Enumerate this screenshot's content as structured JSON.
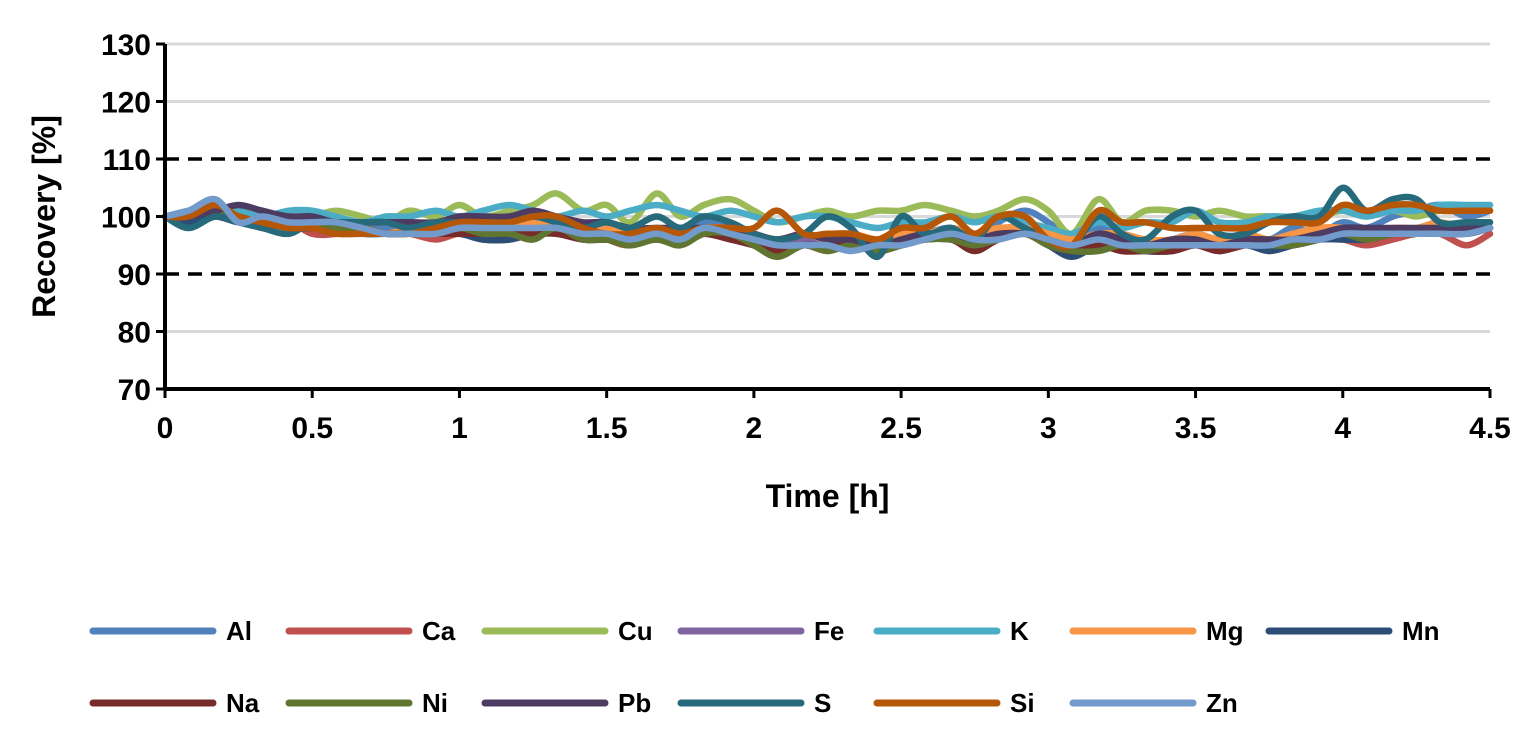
{
  "chart_data": {
    "type": "line",
    "title": "",
    "xlabel": "Time [h]",
    "ylabel": "Recovery [%]",
    "xlim": [
      0,
      4.5
    ],
    "ylim": [
      70,
      130
    ],
    "xticks": [
      0,
      0.5,
      1,
      1.5,
      2,
      2.5,
      3,
      3.5,
      4,
      4.5
    ],
    "xtick_labels": [
      "0",
      "0.5",
      "1",
      "1.5",
      "2",
      "2.5",
      "3",
      "3.5",
      "4",
      "4.5"
    ],
    "yticks": [
      70,
      80,
      90,
      100,
      110,
      120,
      130
    ],
    "ytick_labels": [
      "70",
      "80",
      "90",
      "100",
      "110",
      "120",
      "130"
    ],
    "grid": true,
    "reference_lines": [
      90,
      110
    ],
    "legend_position": "bottom",
    "x": [
      0,
      0.08,
      0.17,
      0.25,
      0.33,
      0.42,
      0.5,
      0.58,
      0.67,
      0.75,
      0.83,
      0.92,
      1,
      1.08,
      1.17,
      1.25,
      1.33,
      1.42,
      1.5,
      1.58,
      1.67,
      1.75,
      1.83,
      1.92,
      2,
      2.08,
      2.17,
      2.25,
      2.33,
      2.42,
      2.5,
      2.58,
      2.67,
      2.75,
      2.83,
      2.92,
      3,
      3.08,
      3.17,
      3.25,
      3.33,
      3.42,
      3.5,
      3.58,
      3.67,
      3.75,
      3.83,
      3.92,
      4,
      4.08,
      4.17,
      4.25,
      4.33,
      4.42,
      4.5
    ],
    "series": [
      {
        "name": "Al",
        "color": "#4F81BD",
        "values": [
          100,
          101,
          102,
          100,
          99,
          100,
          99,
          98,
          99,
          98,
          97,
          98,
          99,
          98,
          99,
          100,
          99,
          98,
          99,
          97,
          98,
          97,
          99,
          98,
          96,
          95,
          96,
          95,
          96,
          95,
          96,
          97,
          98,
          96,
          99,
          101,
          99,
          96,
          98,
          97,
          95,
          96,
          97,
          96,
          97,
          96,
          98,
          97,
          99,
          98,
          100,
          101,
          102,
          100,
          101
        ]
      },
      {
        "name": "Ca",
        "color": "#C0504D",
        "values": [
          100,
          99,
          101,
          100,
          98,
          99,
          97,
          97,
          98,
          97,
          97,
          96,
          97,
          96,
          96,
          97,
          98,
          97,
          96,
          95,
          97,
          96,
          97,
          97,
          95,
          94,
          95,
          94,
          95,
          94,
          95,
          96,
          97,
          95,
          96,
          97,
          96,
          94,
          95,
          94,
          94,
          94,
          95,
          94,
          95,
          94,
          95,
          96,
          96,
          95,
          96,
          97,
          97,
          95,
          97
        ]
      },
      {
        "name": "Cu",
        "color": "#9BBB59",
        "values": [
          100,
          100,
          101,
          100,
          99,
          100,
          100,
          101,
          100,
          99,
          101,
          100,
          102,
          100,
          101,
          102,
          104,
          101,
          102,
          99,
          104,
          100,
          102,
          103,
          101,
          99,
          100,
          101,
          100,
          101,
          101,
          102,
          101,
          100,
          101,
          103,
          101,
          97,
          103,
          99,
          101,
          101,
          100,
          101,
          100,
          100,
          99,
          100,
          101,
          100,
          101,
          100,
          101,
          101,
          102
        ]
      },
      {
        "name": "Fe",
        "color": "#8064A2",
        "values": [
          100,
          100,
          101,
          100,
          99,
          99,
          98,
          98,
          98,
          97,
          98,
          97,
          98,
          97,
          97,
          98,
          98,
          97,
          97,
          96,
          97,
          97,
          97,
          97,
          96,
          95,
          96,
          95,
          96,
          95,
          96,
          97,
          97,
          96,
          97,
          98,
          96,
          95,
          96,
          96,
          95,
          95,
          96,
          95,
          96,
          95,
          96,
          97,
          97,
          96,
          97,
          97,
          98,
          97,
          98
        ]
      },
      {
        "name": "K",
        "color": "#4BACC6",
        "values": [
          100,
          100,
          101,
          101,
          100,
          101,
          101,
          100,
          99,
          100,
          100,
          101,
          100,
          101,
          102,
          101,
          100,
          101,
          100,
          101,
          102,
          101,
          100,
          101,
          100,
          99,
          100,
          100,
          99,
          98,
          99,
          99,
          100,
          99,
          100,
          99,
          98,
          97,
          99,
          98,
          99,
          99,
          101,
          99,
          99,
          100,
          100,
          101,
          101,
          100,
          101,
          101,
          102,
          102,
          102
        ]
      },
      {
        "name": "Mg",
        "color": "#F79646",
        "values": [
          100,
          100,
          101,
          100,
          99,
          99,
          98,
          98,
          98,
          97,
          98,
          98,
          98,
          98,
          98,
          99,
          98,
          98,
          98,
          97,
          98,
          97,
          98,
          98,
          97,
          96,
          97,
          96,
          97,
          96,
          97,
          97,
          98,
          97,
          98,
          98,
          97,
          96,
          97,
          97,
          96,
          96,
          97,
          96,
          97,
          96,
          97,
          98,
          98,
          97,
          98,
          98,
          99,
          98,
          99
        ]
      },
      {
        "name": "Mn",
        "color": "#2C4D75",
        "values": [
          100,
          99,
          100,
          99,
          99,
          98,
          98,
          98,
          97,
          97,
          97,
          97,
          97,
          96,
          96,
          97,
          97,
          96,
          96,
          96,
          96,
          96,
          97,
          97,
          95,
          94,
          95,
          95,
          95,
          94,
          95,
          96,
          96,
          95,
          96,
          97,
          95,
          93,
          95,
          95,
          94,
          94,
          95,
          94,
          95,
          94,
          95,
          96,
          96,
          96,
          97,
          97,
          97,
          97,
          98
        ]
      },
      {
        "name": "Na",
        "color": "#772C2A",
        "values": [
          100,
          100,
          101,
          100,
          99,
          99,
          98,
          98,
          98,
          97,
          97,
          97,
          97,
          97,
          97,
          97,
          97,
          96,
          96,
          96,
          96,
          96,
          97,
          96,
          95,
          94,
          95,
          95,
          95,
          94,
          95,
          96,
          96,
          94,
          96,
          97,
          95,
          94,
          95,
          94,
          94,
          94,
          95,
          94,
          95,
          95,
          95,
          96,
          97,
          96,
          97,
          97,
          98,
          98,
          98
        ]
      },
      {
        "name": "Ni",
        "color": "#5F7530",
        "values": [
          100,
          100,
          101,
          100,
          99,
          99,
          98,
          98,
          98,
          97,
          97,
          97,
          98,
          97,
          97,
          96,
          98,
          96,
          96,
          95,
          96,
          95,
          97,
          97,
          95,
          93,
          95,
          94,
          95,
          94,
          95,
          96,
          96,
          95,
          96,
          97,
          95,
          94,
          94,
          95,
          94,
          95,
          95,
          95,
          95,
          95,
          95,
          96,
          97,
          96,
          97,
          97,
          98,
          98,
          98
        ]
      },
      {
        "name": "Pb",
        "color": "#4D3B62",
        "values": [
          100,
          100,
          101,
          102,
          101,
          100,
          100,
          99,
          99,
          99,
          99,
          99,
          100,
          100,
          100,
          101,
          100,
          99,
          99,
          98,
          98,
          98,
          98,
          98,
          97,
          96,
          97,
          96,
          96,
          95,
          96,
          97,
          97,
          96,
          97,
          97,
          96,
          95,
          97,
          96,
          95,
          96,
          96,
          95,
          96,
          96,
          96,
          97,
          98,
          98,
          98,
          98,
          98,
          98,
          98
        ]
      },
      {
        "name": "S",
        "color": "#276A7C",
        "values": [
          100,
          98,
          100,
          99,
          98,
          97,
          99,
          99,
          99,
          99,
          98,
          99,
          99,
          99,
          99,
          100,
          99,
          98,
          99,
          98,
          100,
          98,
          100,
          99,
          97,
          96,
          97,
          100,
          98,
          93,
          100,
          97,
          98,
          96,
          100,
          98,
          96,
          95,
          100,
          97,
          96,
          100,
          101,
          97,
          97,
          99,
          100,
          100,
          105,
          101,
          103,
          103,
          99,
          99,
          99
        ]
      },
      {
        "name": "Si",
        "color": "#B65708",
        "values": [
          100,
          100,
          102,
          100,
          99,
          98,
          98,
          97,
          97,
          97,
          97,
          98,
          99,
          99,
          99,
          100,
          100,
          98,
          97,
          97,
          98,
          97,
          98,
          98,
          98,
          101,
          97,
          97,
          97,
          96,
          98,
          98,
          100,
          97,
          100,
          100,
          96,
          95,
          101,
          99,
          99,
          98,
          98,
          98,
          98,
          99,
          99,
          99,
          102,
          101,
          102,
          102,
          101,
          101,
          101
        ]
      },
      {
        "name": "Zn",
        "color": "#729ACA",
        "values": [
          100,
          101,
          103,
          99,
          100,
          99,
          99,
          99,
          98,
          97,
          97,
          97,
          98,
          98,
          98,
          98,
          98,
          97,
          97,
          96,
          97,
          96,
          98,
          97,
          96,
          95,
          95,
          95,
          94,
          95,
          95,
          96,
          97,
          96,
          96,
          97,
          96,
          95,
          96,
          95,
          95,
          95,
          95,
          95,
          95,
          95,
          96,
          96,
          97,
          97,
          97,
          97,
          97,
          97,
          98
        ]
      }
    ]
  }
}
